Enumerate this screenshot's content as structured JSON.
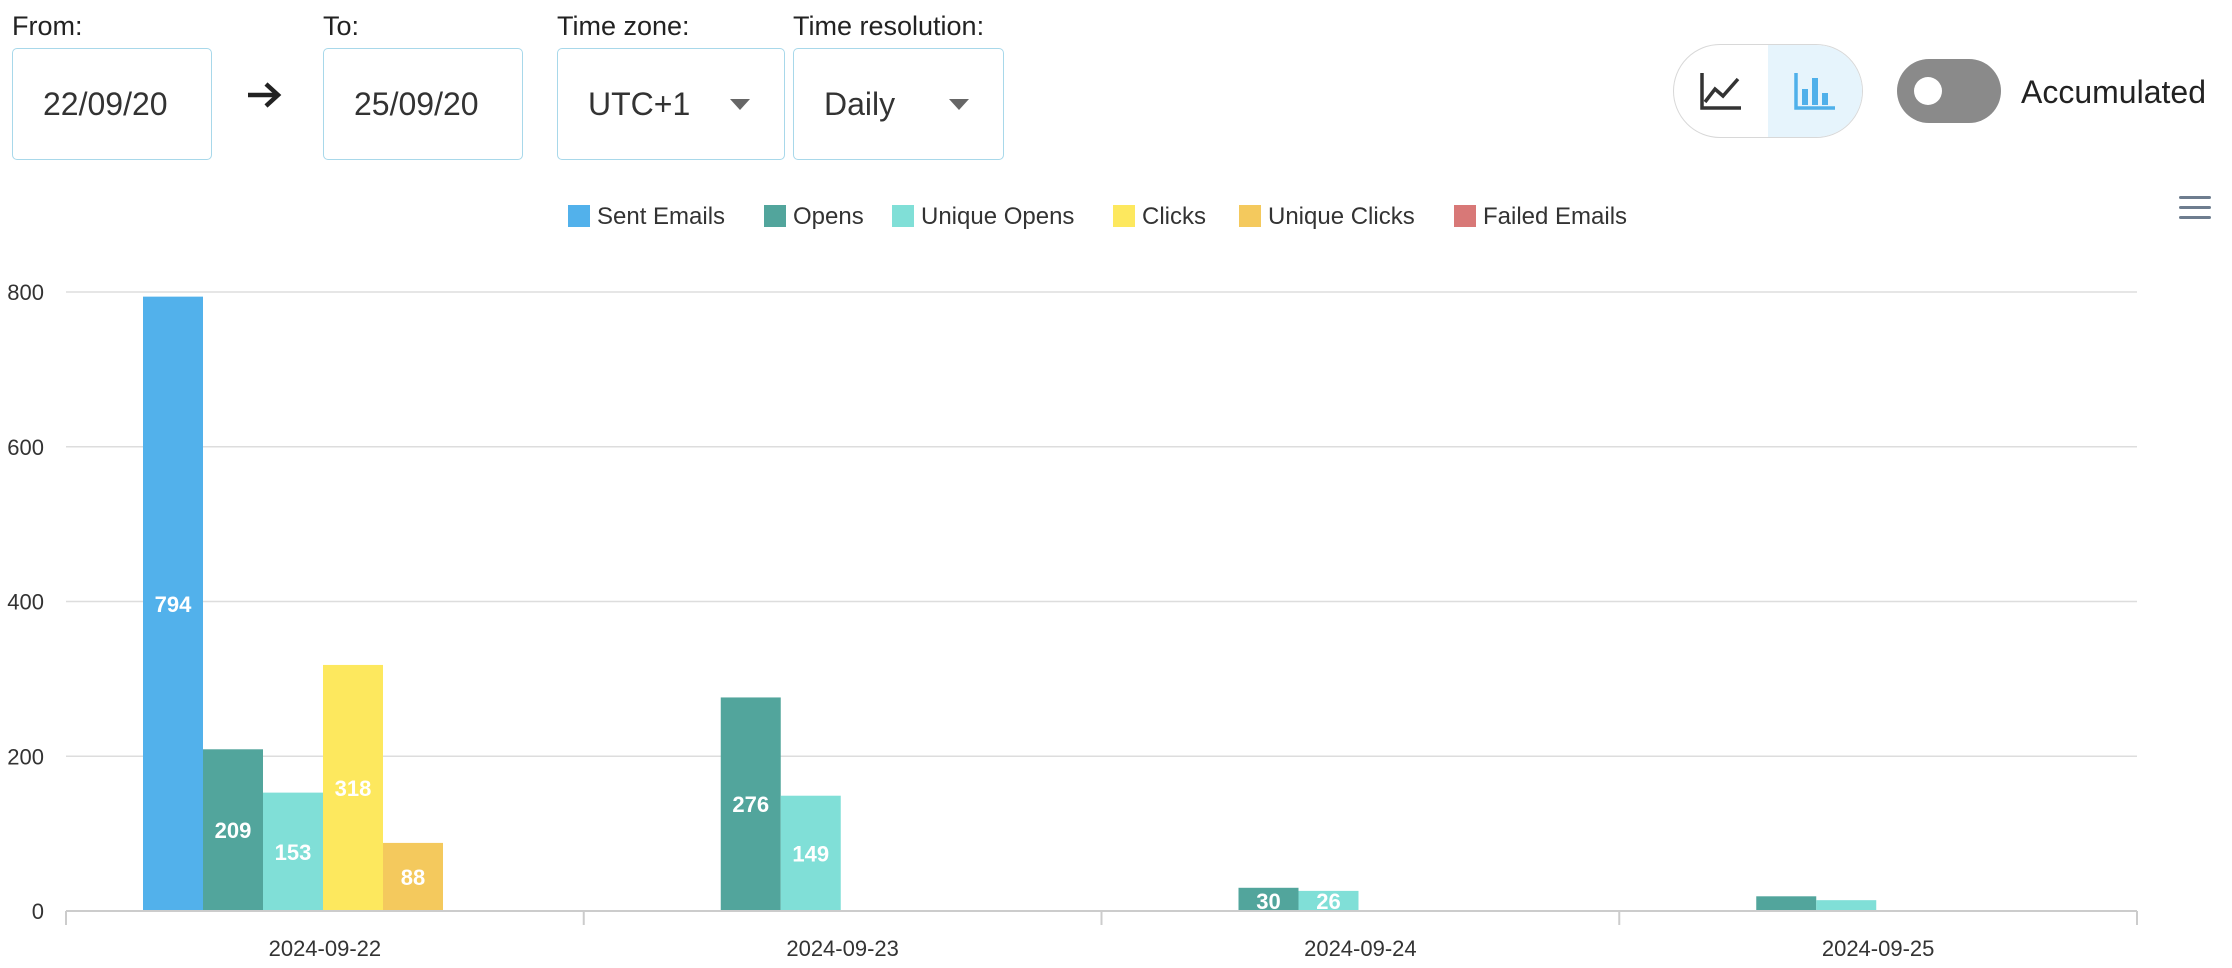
{
  "filters": {
    "from_label": "From:",
    "from_value": "22/09/20",
    "to_label": "To:",
    "to_value": "25/09/20",
    "timezone_label": "Time zone:",
    "timezone_value": "UTC+1",
    "resolution_label": "Time resolution:",
    "resolution_value": "Daily"
  },
  "view_toggle": {
    "options": [
      "line-chart-icon",
      "bar-chart-icon"
    ],
    "selected": "bar"
  },
  "accumulated": {
    "label": "Accumulated",
    "enabled": false
  },
  "colors": {
    "accent": "#4fb0ea",
    "selected_bg": "#e6f4fc"
  },
  "chart_data": {
    "type": "bar",
    "categories": [
      "2024-09-22",
      "2024-09-23",
      "2024-09-24",
      "2024-09-25"
    ],
    "series": [
      {
        "name": "Sent Emails",
        "color": "#52b1eb",
        "values": [
          794,
          0,
          0,
          0
        ],
        "labels": [
          "794",
          "",
          "",
          ""
        ]
      },
      {
        "name": "Opens",
        "color": "#52a59c",
        "values": [
          209,
          276,
          30,
          19
        ],
        "labels": [
          "209",
          "276",
          "30",
          ""
        ]
      },
      {
        "name": "Unique Opens",
        "color": "#80dfd7",
        "values": [
          153,
          149,
          26,
          14
        ],
        "labels": [
          "153",
          "149",
          "26",
          ""
        ]
      },
      {
        "name": "Clicks",
        "color": "#fde85e",
        "values": [
          318,
          1,
          0,
          0
        ],
        "labels": [
          "318",
          "",
          "",
          ""
        ]
      },
      {
        "name": "Unique Clicks",
        "color": "#f4c95d",
        "values": [
          88,
          1,
          0,
          0
        ],
        "labels": [
          "88",
          "",
          "",
          ""
        ]
      },
      {
        "name": "Failed Emails",
        "color": "#d87877",
        "values": [
          0,
          0,
          0,
          0
        ],
        "labels": [
          "",
          "",
          "",
          ""
        ]
      }
    ],
    "yticks": [
      0,
      200,
      400,
      600,
      800
    ],
    "ylim": [
      0,
      800
    ],
    "grid": true,
    "legend_position": "top-center"
  }
}
